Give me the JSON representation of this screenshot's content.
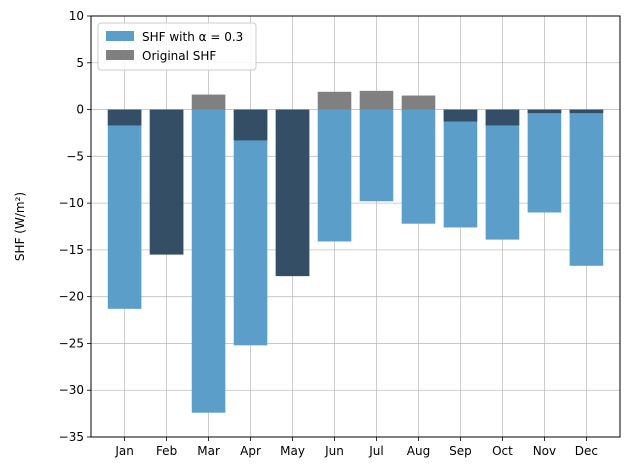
{
  "chart_data": {
    "type": "bar",
    "categories": [
      "Jan",
      "Feb",
      "Mar",
      "Apr",
      "May",
      "Jun",
      "Jul",
      "Aug",
      "Sep",
      "Oct",
      "Nov",
      "Dec"
    ],
    "series": [
      {
        "name": "Original SHF",
        "color": "#808080",
        "values": [
          -1.7,
          -15.5,
          1.6,
          -3.3,
          -17.8,
          1.9,
          2.0,
          1.5,
          -1.3,
          -1.7,
          -0.4,
          -0.4
        ]
      },
      {
        "name": "SHF with α = 0.3",
        "color": "#5b9ec9",
        "alpha": 0.95,
        "values": [
          -21.3,
          -15.5,
          -32.4,
          -25.2,
          -17.8,
          -14.1,
          -9.8,
          -12.2,
          -12.6,
          -13.9,
          -11.0,
          -16.7
        ]
      }
    ],
    "legend": {
      "position": "top-left",
      "entries": [
        "SHF with α = 0.3",
        "Original SHF"
      ]
    },
    "title": "",
    "xlabel": "",
    "ylabel": "SHF (W/m²)",
    "ylim": [
      -35,
      10
    ],
    "yticks": [
      10,
      5,
      0,
      -5,
      -10,
      -15,
      -20,
      -25,
      -30,
      -35
    ],
    "grid": true,
    "overlap_color": "#344f65"
  }
}
